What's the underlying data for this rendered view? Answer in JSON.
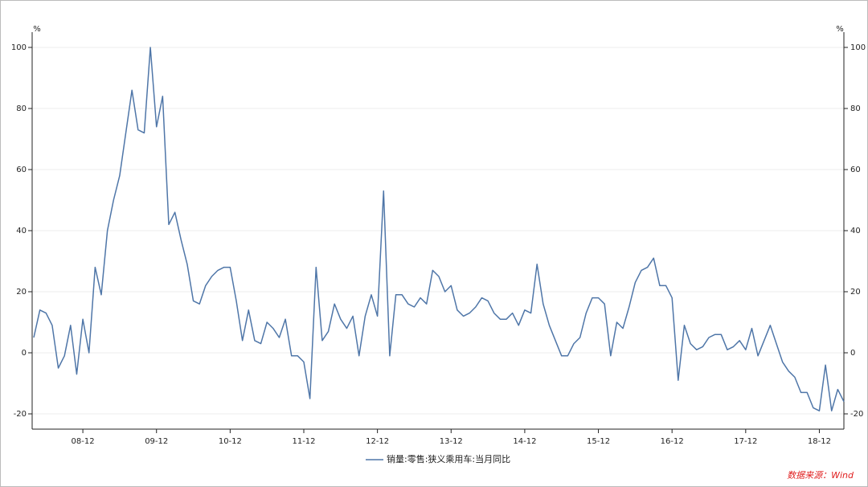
{
  "chart_data": {
    "type": "line",
    "y_unit": "%",
    "y2_unit": "%",
    "source": "数据来源：Wind",
    "categories": [
      null,
      null,
      null,
      null,
      null,
      null,
      null,
      null,
      "08-12",
      null,
      null,
      null,
      null,
      null,
      null,
      null,
      null,
      null,
      null,
      null,
      "09-12",
      null,
      null,
      null,
      null,
      null,
      null,
      null,
      null,
      null,
      null,
      null,
      "10-12",
      null,
      null,
      null,
      null,
      null,
      null,
      null,
      null,
      null,
      null,
      null,
      "11-12",
      null,
      null,
      null,
      null,
      null,
      null,
      null,
      null,
      null,
      null,
      null,
      "12-12",
      null,
      null,
      null,
      null,
      null,
      null,
      null,
      null,
      null,
      null,
      null,
      "13-12",
      null,
      null,
      null,
      null,
      null,
      null,
      null,
      null,
      null,
      null,
      null,
      "14-12",
      null,
      null,
      null,
      null,
      null,
      null,
      null,
      null,
      null,
      null,
      null,
      "15-12",
      null,
      null,
      null,
      null,
      null,
      null,
      null,
      null,
      null,
      null,
      null,
      "16-12",
      null,
      null,
      null,
      null,
      null,
      null,
      null,
      null,
      null,
      null,
      null,
      "17-12",
      null,
      null,
      null,
      null,
      null,
      null,
      null,
      null,
      null,
      null,
      null,
      "18-12",
      null,
      null,
      null,
      null
    ],
    "series": [
      {
        "name": "销量:零售:狭义乘用车:当月同比",
        "color": "#4f76a8",
        "values": [
          5,
          14,
          13,
          9,
          -5,
          -1,
          9,
          -7,
          11,
          0,
          28,
          19,
          40,
          50,
          58,
          72,
          86,
          73,
          72,
          100,
          74,
          84,
          42,
          46,
          37,
          29,
          17,
          16,
          22,
          25,
          27,
          28,
          28,
          17,
          4,
          14,
          4,
          3,
          10,
          8,
          5,
          11,
          -1,
          -1,
          -3,
          -15,
          28,
          4,
          7,
          16,
          11,
          8,
          12,
          -1,
          12,
          19,
          12,
          53,
          -1,
          19,
          19,
          16,
          15,
          18,
          16,
          27,
          25,
          20,
          22,
          14,
          12,
          13,
          15,
          18,
          17,
          13,
          11,
          11,
          13,
          9,
          14,
          13,
          29,
          16,
          9,
          4,
          -1,
          -1,
          3,
          5,
          13,
          18,
          18,
          16,
          -1,
          10,
          8,
          15,
          23,
          27,
          28,
          31,
          22,
          22,
          18,
          -9,
          9,
          3,
          1,
          2,
          5,
          6,
          6,
          1,
          2,
          4,
          1,
          8,
          -1,
          4,
          9,
          3,
          -3,
          -6,
          -8,
          -13,
          -13,
          -18,
          -19,
          -4,
          -19,
          -12,
          -16
        ]
      }
    ],
    "ylim": [
      -25,
      105
    ],
    "yticks": [
      -20,
      0,
      20,
      40,
      60,
      80,
      100
    ],
    "y2lim": [
      -25,
      105
    ],
    "y2ticks": [
      -20,
      0,
      20,
      40,
      60,
      80,
      100
    ],
    "grid": true
  }
}
